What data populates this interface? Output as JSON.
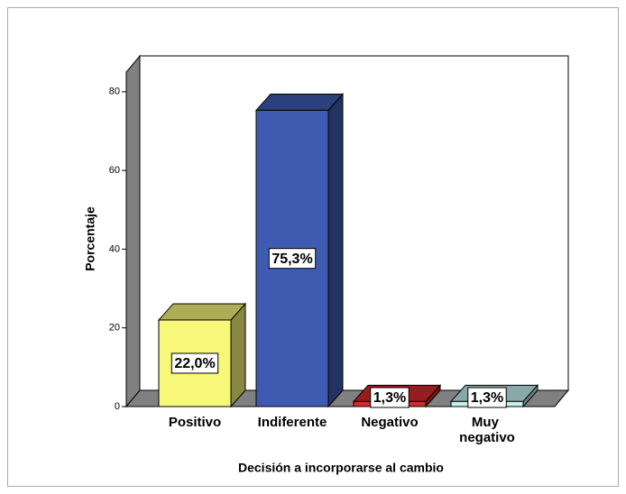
{
  "chart_data": {
    "type": "bar3d",
    "x_label": "Decisión a incorporarse al cambio",
    "y_label": "Porcentaje",
    "categories": [
      "Positivo",
      "Indiferente",
      "Negativo",
      "Muy negativo"
    ],
    "values": [
      22.0,
      75.3,
      1.3,
      1.3
    ],
    "value_labels": [
      "22,0%",
      "75,3%",
      "1,3%",
      "1,3%"
    ],
    "colors": [
      "#f7f77a",
      "#3e5bb1",
      "#d42b2b",
      "#c3f0f0"
    ],
    "ylim": [
      0,
      85
    ],
    "yticks": [
      0,
      20,
      40,
      60,
      80
    ]
  }
}
